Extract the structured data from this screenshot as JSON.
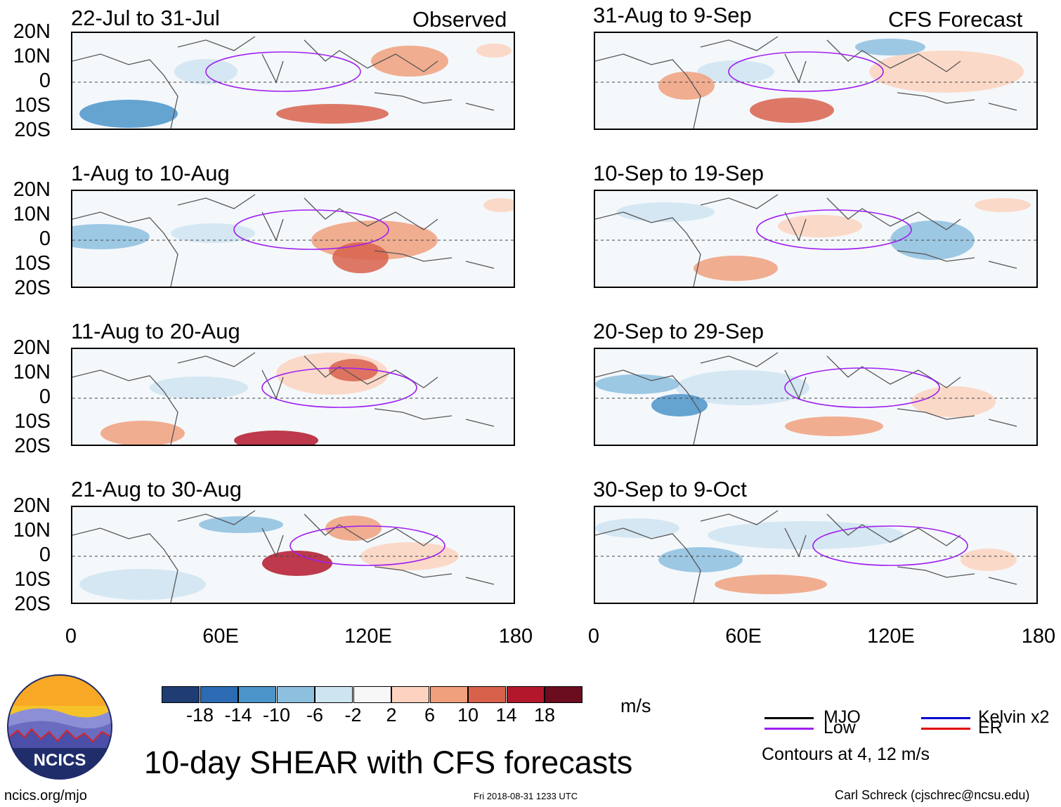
{
  "title": "10-day SHEAR with CFS forecasts",
  "units": "m/s",
  "labels": {
    "observed": "Observed",
    "forecast": "CFS Forecast"
  },
  "lat_labels": [
    "20N",
    "10N",
    "0",
    "10S",
    "20S"
  ],
  "lon_labels": [
    "0",
    "60E",
    "120E",
    "180"
  ],
  "panels": [
    {
      "id": "p1",
      "period": "22-Jul to 31-Jul",
      "type": "observed"
    },
    {
      "id": "p2",
      "period": "1-Aug to 10-Aug",
      "type": "observed"
    },
    {
      "id": "p3",
      "period": "11-Aug to 20-Aug",
      "type": "observed"
    },
    {
      "id": "p4",
      "period": "21-Aug to 30-Aug",
      "type": "observed"
    },
    {
      "id": "p5",
      "period": "31-Aug to 9-Sep",
      "type": "forecast"
    },
    {
      "id": "p6",
      "period": "10-Sep to 19-Sep",
      "type": "forecast"
    },
    {
      "id": "p7",
      "period": "20-Sep to 29-Sep",
      "type": "forecast"
    },
    {
      "id": "p8",
      "period": "30-Sep to 9-Oct",
      "type": "forecast"
    }
  ],
  "colorbar": {
    "ticks": [
      "-18",
      "-14",
      "-10",
      "-6",
      "-2",
      "2",
      "6",
      "10",
      "14",
      "18"
    ],
    "colors": [
      "#1f3d73",
      "#2c6bb3",
      "#4b94c9",
      "#8dc0df",
      "#cfe4f1",
      "#f7f7f7",
      "#fbd3c0",
      "#f0a07d",
      "#d8614c",
      "#b3172c",
      "#6b0d1f"
    ]
  },
  "legend": {
    "note": "Contours at 4, 12 m/s",
    "items": [
      {
        "label": "MJO",
        "color": "#000000"
      },
      {
        "label": "Low",
        "color": "#a020f0"
      },
      {
        "label": "Kelvin x2",
        "color": "#0000cd"
      },
      {
        "label": "ER",
        "color": "#e00000"
      }
    ]
  },
  "logo": {
    "text": "NCICS"
  },
  "footer": {
    "url": "ncics.org/mjo",
    "timestamp": "Fri 2018-08-31 1233 UTC",
    "author": "Carl Schreck (cjschrec@ncsu.edu)"
  }
}
